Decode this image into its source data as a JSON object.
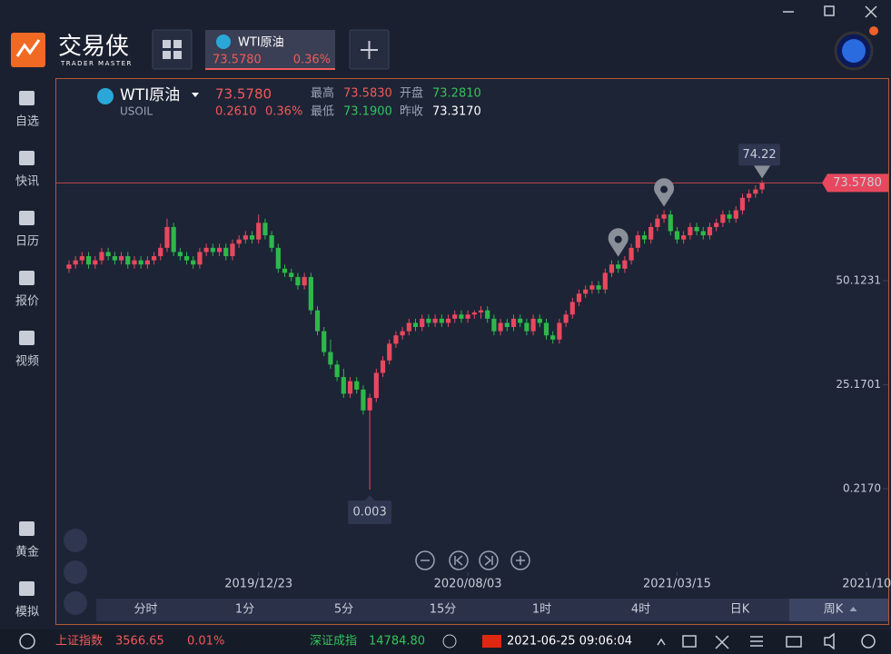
{
  "app": {
    "logo": "交易侠",
    "logo_sub": "TRADER MASTER",
    "tab": {
      "name": "WTI原油",
      "price": "73.5780",
      "pct": "0.36%"
    }
  },
  "sidebar": [
    "自选",
    "快讯",
    "日历",
    "报价",
    "视频",
    "黄金",
    "模拟"
  ],
  "quote": {
    "name": "WTI原油",
    "symbol": "USOIL",
    "price": "73.5780",
    "change": "0.2610",
    "pct": "0.36%",
    "high_label": "最高",
    "high": "73.5830",
    "open_label": "开盘",
    "open": "73.2810",
    "low_label": "最低",
    "low": "73.1900",
    "prev_label": "昨收",
    "prev": "73.3170"
  },
  "timeframes": [
    "分时",
    "1分",
    "5分",
    "15分",
    "1时",
    "4时",
    "日K",
    "周K"
  ],
  "status": {
    "index1": "上证指数",
    "index1_value": "3566.65",
    "index1_pct": "0.01%",
    "index2": "深证成指",
    "index2_value": "14784.80",
    "time": "2021-06-25 09:06:04"
  },
  "chart_data": {
    "type": "candlestick",
    "up_color": "#e8485e",
    "down_color": "#2eb84b",
    "xlim": [
      -1.94,
      125.3
    ],
    "ylim": [
      -19.83,
      98.5
    ],
    "xticks": [
      {
        "value": 29,
        "label": "2019/12/23"
      },
      {
        "value": 61,
        "label": "2020/08/03"
      },
      {
        "value": 93,
        "label": "2021/03/15"
      },
      {
        "value": 122,
        "label": "2021/10"
      }
    ],
    "yticks": [
      {
        "value": 73.578,
        "label": "73.5780"
      },
      50.1231,
      25.1701,
      {
        "value": 0.217,
        "label": "0.2170"
      }
    ],
    "price_line": {
      "value": 73.578,
      "label": "73.5780"
    },
    "ohlc": [
      [
        53,
        55,
        52,
        54
      ],
      [
        54,
        56,
        53,
        55
      ],
      [
        55,
        57,
        54,
        56
      ],
      [
        56,
        57,
        53,
        54
      ],
      [
        54,
        56,
        53,
        55
      ],
      [
        55,
        58,
        54,
        57
      ],
      [
        57,
        58,
        55,
        56
      ],
      [
        56,
        57,
        54,
        55
      ],
      [
        55,
        57,
        54,
        56
      ],
      [
        56,
        57,
        53,
        54
      ],
      [
        54,
        56,
        53,
        55
      ],
      [
        55,
        56,
        53,
        54
      ],
      [
        54,
        56,
        53,
        55
      ],
      [
        55,
        57,
        54,
        56
      ],
      [
        56,
        59,
        55,
        58
      ],
      [
        58,
        65,
        57,
        63
      ],
      [
        63,
        64,
        56,
        57
      ],
      [
        57,
        58,
        55,
        56
      ],
      [
        56,
        57,
        54,
        55
      ],
      [
        55,
        56,
        53,
        54
      ],
      [
        54,
        58,
        53,
        57
      ],
      [
        57,
        59,
        56,
        58
      ],
      [
        58,
        59,
        56,
        57
      ],
      [
        57,
        59,
        56,
        58
      ],
      [
        58,
        59,
        55,
        56
      ],
      [
        56,
        60,
        55,
        59
      ],
      [
        59,
        61,
        58,
        60
      ],
      [
        60,
        62,
        59,
        61
      ],
      [
        61,
        62,
        59,
        60
      ],
      [
        60,
        66,
        59,
        64
      ],
      [
        64,
        65,
        60,
        61
      ],
      [
        61,
        62,
        57,
        58
      ],
      [
        58,
        59,
        52,
        53
      ],
      [
        53,
        54,
        51,
        52
      ],
      [
        52,
        53,
        50,
        51
      ],
      [
        51,
        52,
        48,
        49
      ],
      [
        49,
        52,
        48,
        51
      ],
      [
        51,
        52,
        42,
        43
      ],
      [
        43,
        44,
        37,
        38
      ],
      [
        38,
        39,
        32,
        33
      ],
      [
        33,
        36,
        29,
        30
      ],
      [
        30,
        31,
        26,
        27
      ],
      [
        27,
        29,
        22,
        23
      ],
      [
        23,
        27,
        22,
        26
      ],
      [
        26,
        27,
        23,
        24
      ],
      [
        24,
        25,
        18,
        19
      ],
      [
        19,
        23,
        0.003,
        22
      ],
      [
        22,
        29,
        21,
        28
      ],
      [
        28,
        32,
        27,
        31
      ],
      [
        31,
        36,
        30,
        35
      ],
      [
        35,
        38,
        34,
        37
      ],
      [
        37,
        39,
        36,
        38
      ],
      [
        38,
        41,
        37,
        40
      ],
      [
        40,
        41,
        38,
        39
      ],
      [
        39,
        42,
        38,
        41
      ],
      [
        41,
        42,
        39,
        40
      ],
      [
        40,
        42,
        39,
        41
      ],
      [
        41,
        42,
        39,
        40
      ],
      [
        40,
        42,
        39,
        41
      ],
      [
        41,
        43,
        40,
        42
      ],
      [
        42,
        43,
        40,
        41
      ],
      [
        41,
        43,
        40,
        42
      ],
      [
        42,
        43,
        41,
        42.5
      ],
      [
        42.5,
        44,
        41,
        43
      ],
      [
        43,
        44,
        40,
        41
      ],
      [
        41,
        42,
        37,
        38
      ],
      [
        38,
        41,
        37,
        40
      ],
      [
        40,
        41,
        38,
        39
      ],
      [
        39,
        42,
        38,
        41
      ],
      [
        41,
        42,
        39,
        40
      ],
      [
        40,
        41,
        37,
        38
      ],
      [
        38,
        42,
        37,
        41
      ],
      [
        41,
        42,
        39,
        40
      ],
      [
        40,
        41,
        36,
        37
      ],
      [
        37,
        38,
        35,
        36
      ],
      [
        36,
        41,
        35,
        40
      ],
      [
        40,
        43,
        39,
        42
      ],
      [
        42,
        46,
        41,
        45
      ],
      [
        45,
        48,
        44,
        47
      ],
      [
        47,
        49,
        46,
        48
      ],
      [
        48,
        50,
        47,
        49
      ],
      [
        49,
        50,
        47,
        48
      ],
      [
        48,
        53,
        47,
        52
      ],
      [
        52,
        55,
        51,
        54
      ],
      [
        54,
        55,
        52,
        53
      ],
      [
        53,
        56,
        52,
        55
      ],
      [
        55,
        59,
        54,
        58
      ],
      [
        58,
        62,
        57,
        61
      ],
      [
        61,
        62,
        59,
        60
      ],
      [
        60,
        64,
        59,
        63
      ],
      [
        63,
        66,
        62,
        65
      ],
      [
        65,
        67,
        64,
        66
      ],
      [
        66,
        67,
        61,
        62
      ],
      [
        62,
        63,
        59,
        60
      ],
      [
        60,
        62,
        59,
        61
      ],
      [
        61,
        64,
        60,
        63
      ],
      [
        63,
        64,
        61,
        62
      ],
      [
        62,
        63,
        60,
        61
      ],
      [
        61,
        64,
        60,
        63
      ],
      [
        63,
        65,
        62,
        64
      ],
      [
        64,
        67,
        63,
        66
      ],
      [
        66,
        67,
        64,
        65
      ],
      [
        65,
        68,
        64,
        67
      ],
      [
        67,
        71,
        66,
        70
      ],
      [
        70,
        72,
        69,
        71
      ],
      [
        71,
        73,
        70,
        72
      ],
      [
        72,
        74.22,
        71,
        73.578
      ]
    ]
  }
}
